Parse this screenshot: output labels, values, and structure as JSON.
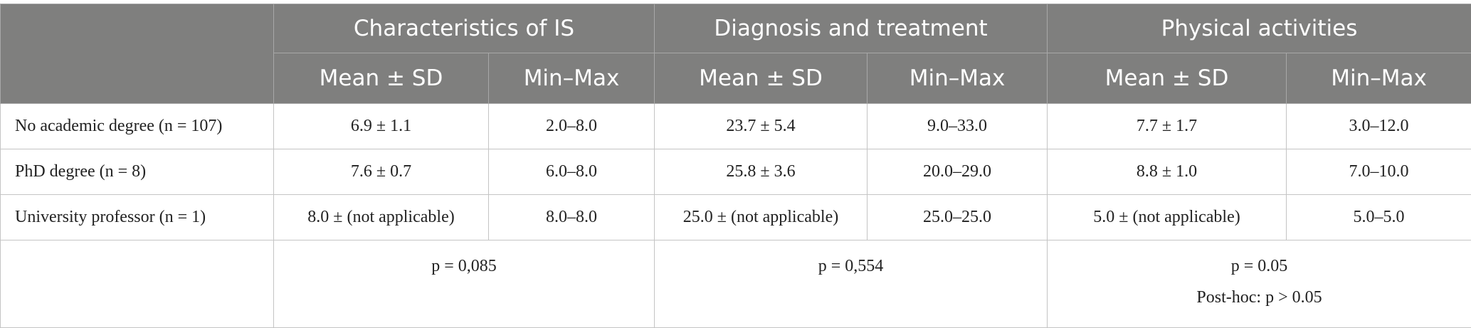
{
  "table": {
    "groups": [
      "Characteristics of IS",
      "Diagnosis and treatment",
      "Physical activities"
    ],
    "subheaders": [
      "Mean ± SD",
      "Min–Max",
      "Mean ± SD",
      "Min–Max",
      "Mean ± SD",
      "Min–Max"
    ],
    "rows": [
      [
        "No academic degree (n = 107)",
        "6.9 ± 1.1",
        "2.0–8.0",
        "23.7 ± 5.4",
        "9.0–33.0",
        "7.7 ± 1.7",
        "3.0–12.0"
      ],
      [
        "PhD degree (n = 8)",
        "7.6 ± 0.7",
        "6.0–8.0",
        "25.8 ± 3.6",
        "20.0–29.0",
        "8.8 ± 1.0",
        "7.0–10.0"
      ],
      [
        "University professor (n = 1)",
        "8.0 ± (not applicable)",
        "8.0–8.0",
        "25.0 ± (not applicable)",
        "25.0–25.0",
        "5.0 ± (not applicable)",
        "5.0–5.0"
      ]
    ],
    "p_values": [
      [
        "p = 0,085"
      ],
      [
        "p = 0,554"
      ],
      [
        "p = 0.05",
        "Post-hoc: p > 0.05"
      ]
    ]
  }
}
